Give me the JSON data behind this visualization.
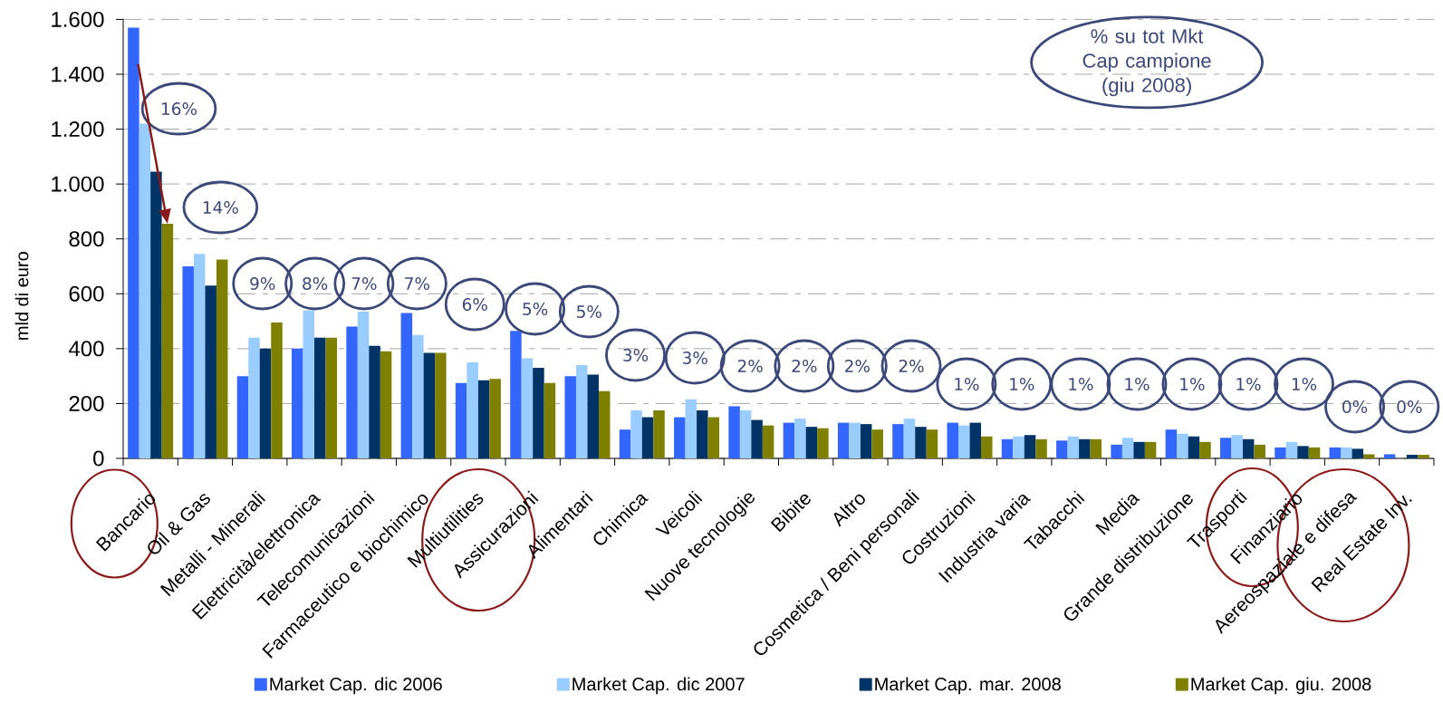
{
  "chart_data": {
    "type": "bar",
    "categories": [
      "Bancario",
      "Oil & Gas",
      "Metalli - Minerali",
      "Elettricità/elettronica",
      "Telecomunicazioni",
      "Farmaceutico e biochimico",
      "Multiutilities",
      "Assicurazioni",
      "Alimentari",
      "Chimica",
      "Veicoli",
      "Nuove tecnologie",
      "Bibite",
      "Altro",
      "Cosmetica / Beni personali",
      "Costruzioni",
      "Industria varia",
      "Tabacchi",
      "Media",
      "Grande distribuzione",
      "Trasporti",
      "Finanziario",
      "Aereospaziale e difesa",
      "Real Estate Inv."
    ],
    "series": [
      {
        "name": "Market Cap. dic 2006",
        "color": "#3366ff",
        "values": [
          1570,
          700,
          300,
          400,
          480,
          530,
          275,
          465,
          300,
          105,
          150,
          190,
          130,
          130,
          125,
          130,
          70,
          65,
          50,
          105,
          75,
          40,
          40,
          15
        ]
      },
      {
        "name": "Market Cap. dic 2007",
        "color": "#99ccff",
        "values": [
          1220,
          745,
          440,
          540,
          535,
          450,
          350,
          365,
          340,
          175,
          215,
          175,
          145,
          130,
          145,
          120,
          80,
          80,
          75,
          90,
          85,
          60,
          40,
          null
        ]
      },
      {
        "name": "Market Cap. mar. 2008",
        "color": "#003366",
        "values": [
          1045,
          630,
          400,
          440,
          410,
          385,
          285,
          330,
          305,
          150,
          175,
          140,
          115,
          125,
          115,
          130,
          85,
          70,
          60,
          80,
          70,
          45,
          35,
          13
        ]
      },
      {
        "name": "Market Cap. giu. 2008",
        "color": "#808000",
        "values": [
          855,
          725,
          495,
          440,
          390,
          385,
          290,
          275,
          245,
          175,
          150,
          120,
          110,
          105,
          105,
          80,
          70,
          70,
          60,
          60,
          50,
          40,
          15,
          13
        ]
      }
    ],
    "ylabel": "mld di euro",
    "ylim": [
      0,
      1600
    ],
    "yticks": [
      0,
      200,
      400,
      600,
      800,
      {
        "value": 1000,
        "label": "1.000"
      },
      {
        "value": 1200,
        "label": "1.200"
      },
      {
        "value": 1400,
        "label": "1.400"
      },
      {
        "value": 1600,
        "label": "1.600"
      }
    ],
    "grid": "y",
    "legend": "bottom",
    "annotations": [
      "16%",
      "14%",
      "9%",
      "8%",
      "7%",
      "7%",
      "6%",
      "5%",
      "5%",
      "3%",
      "3%",
      "2%",
      "2%",
      "2%",
      "2%",
      "1%",
      "1%",
      "1%",
      "1%",
      "1%",
      "1%",
      "1%",
      "0%",
      "0%",
      "% su tot Mkt Cap campione (giu 2008)"
    ]
  }
}
